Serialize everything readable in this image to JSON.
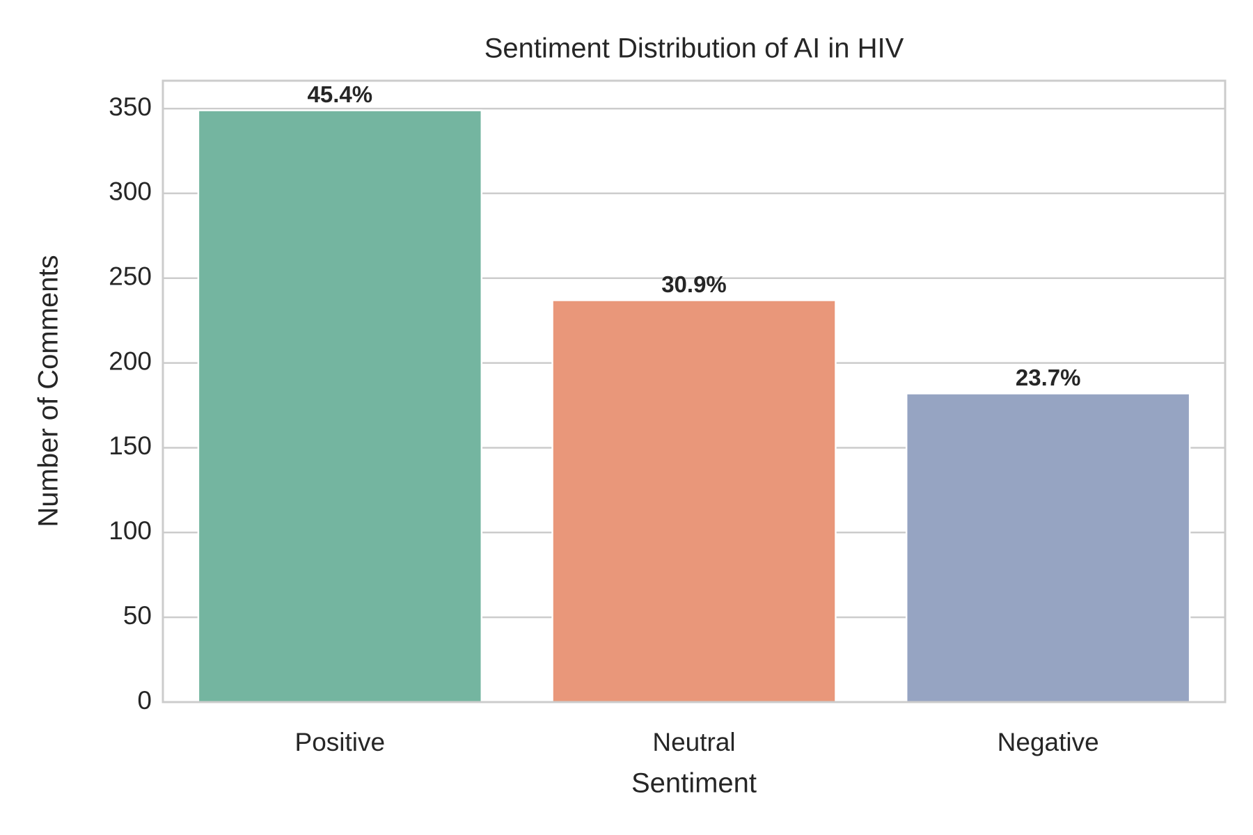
{
  "chart_data": {
    "type": "bar",
    "title": "Sentiment Distribution of AI in HIV",
    "x_label": "Sentiment",
    "y_label": "Number of Comments",
    "categories": [
      "Positive",
      "Neutral",
      "Negative"
    ],
    "values": [
      349,
      237,
      182
    ],
    "bar_labels": [
      "45.4%",
      "30.9%",
      "23.7%"
    ],
    "colors": [
      "#74b5a0",
      "#e9977a",
      "#96a4c2"
    ],
    "ylim": [
      0,
      366.45
    ],
    "yticks": [
      0,
      50,
      100,
      150,
      200,
      250,
      300,
      350
    ],
    "grid": true
  }
}
